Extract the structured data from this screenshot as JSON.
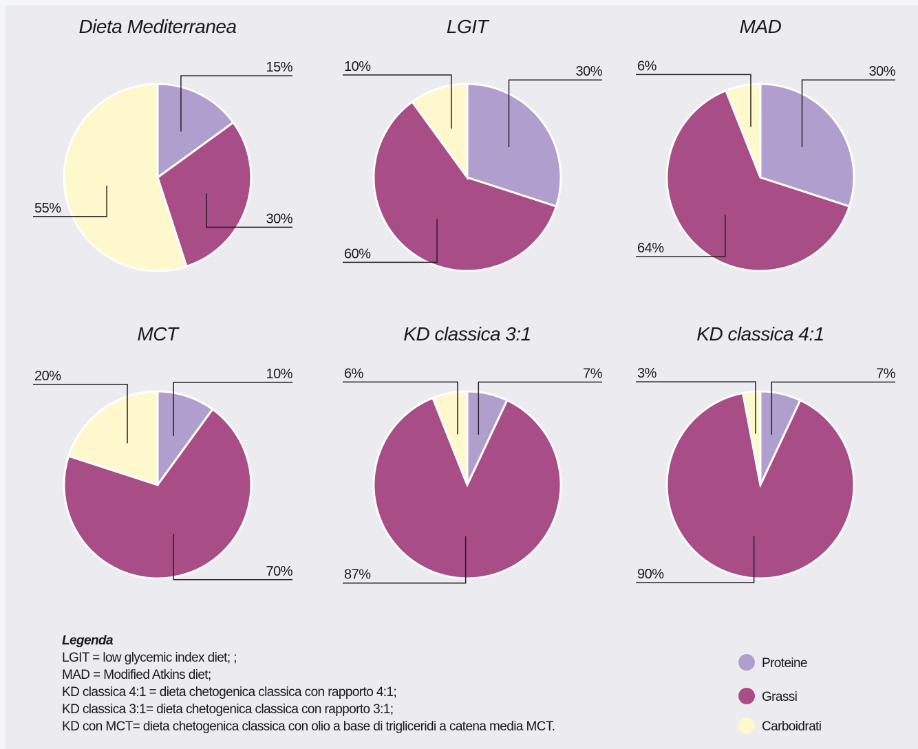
{
  "chart_data": [
    {
      "type": "pie",
      "title": "Dieta Mediterranea",
      "values": [
        15,
        30,
        55
      ],
      "value_labels": [
        "15%",
        "30%",
        "55%"
      ]
    },
    {
      "type": "pie",
      "title": "LGIT",
      "values": [
        30,
        60,
        10
      ],
      "value_labels": [
        "30%",
        "60%",
        "10%"
      ]
    },
    {
      "type": "pie",
      "title": "MAD",
      "values": [
        30,
        64,
        6
      ],
      "value_labels": [
        "30%",
        "64%",
        "6%"
      ]
    },
    {
      "type": "pie",
      "title": "MCT",
      "values": [
        10,
        70,
        20
      ],
      "value_labels": [
        "10%",
        "70%",
        "20%"
      ]
    },
    {
      "type": "pie",
      "title": "KD classica 3:1",
      "values": [
        7,
        87,
        6
      ],
      "value_labels": [
        "7%",
        "87%",
        "6%"
      ]
    },
    {
      "type": "pie",
      "title": "KD classica 4:1",
      "values": [
        7,
        90,
        3
      ],
      "value_labels": [
        "7%",
        "90%",
        "3%"
      ]
    }
  ],
  "legend": {
    "items": [
      {
        "name": "Proteine",
        "color": "#b09fce"
      },
      {
        "name": "Grassi",
        "color": "#a84d85"
      },
      {
        "name": "Carboidrati",
        "color": "#fff8cc"
      }
    ]
  },
  "notes": {
    "title": "Legenda",
    "lines": [
      "LGIT = low glycemic index diet; ;",
      "MAD = Modified Atkins diet;",
      "KD classica 4:1 = dieta chetogenica classica con rapporto 4:1;",
      "KD classica 3:1= dieta chetogenica classica con rapporto 3:1;",
      "KD con MCT= dieta chetogenica classica con olio a base di trigliceridi a catena media MCT."
    ]
  }
}
